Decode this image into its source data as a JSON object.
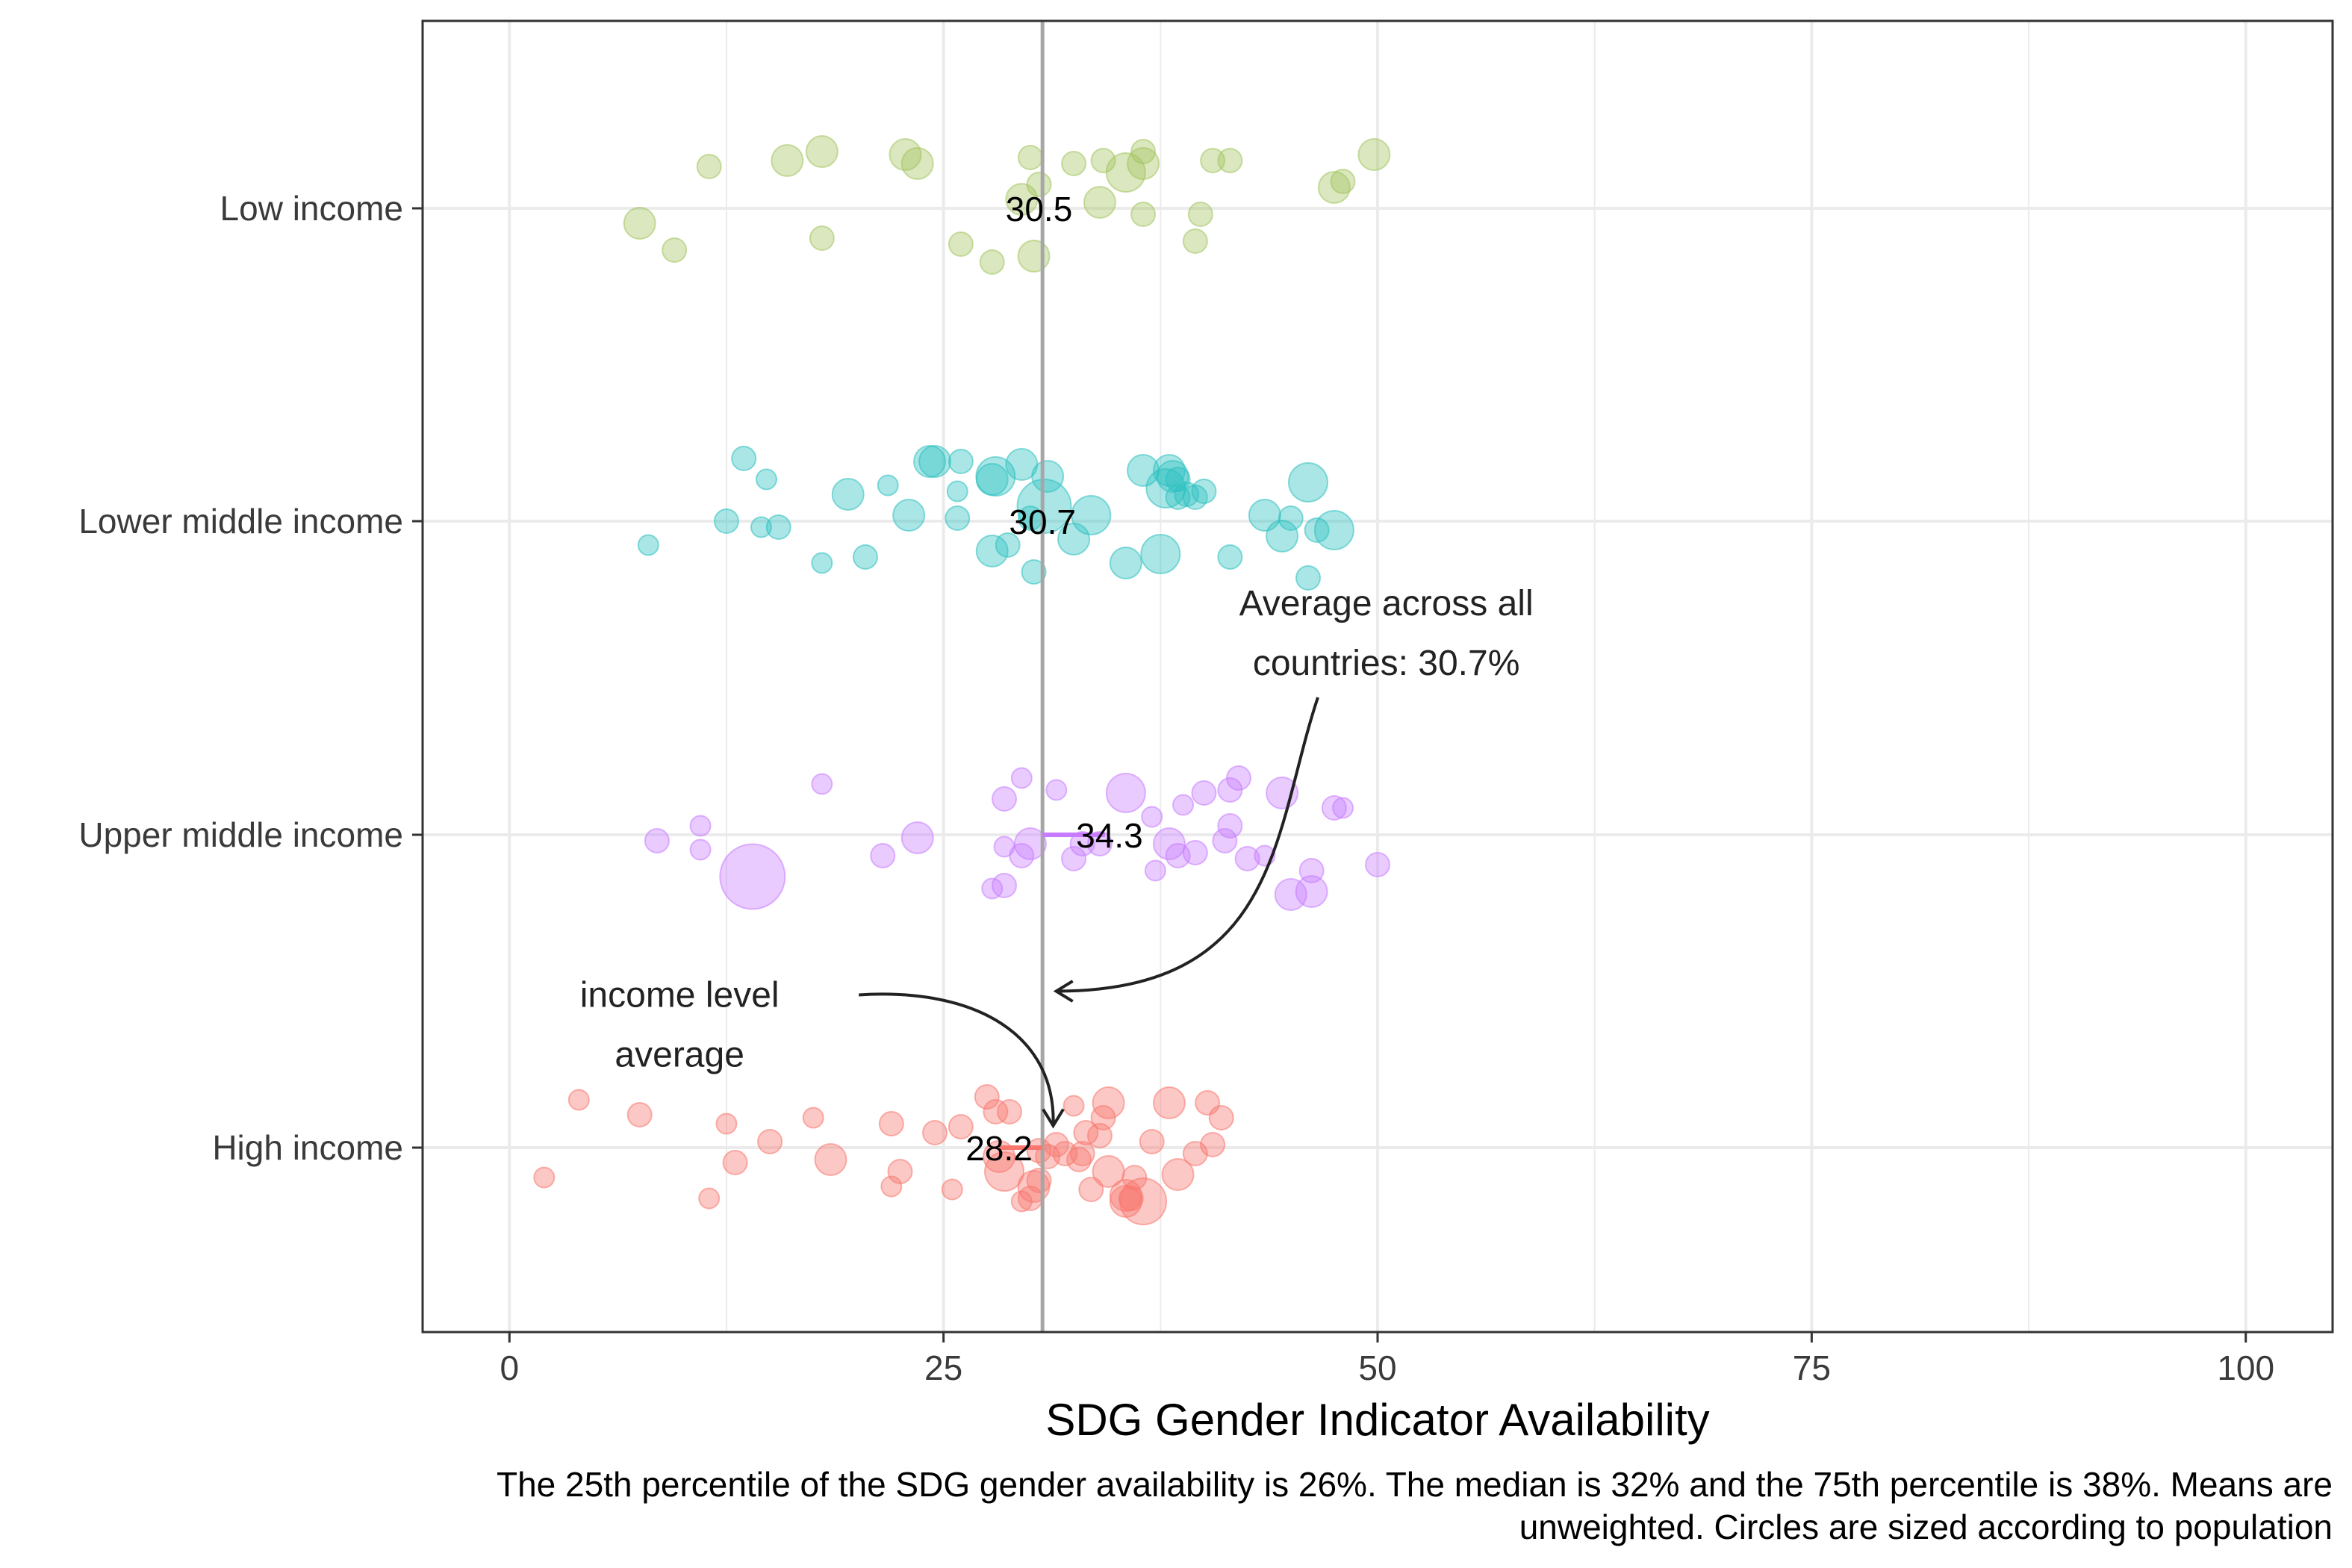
{
  "chart_data": {
    "type": "scatter",
    "title": "",
    "xlabel": "SDG Gender Indicator Availability",
    "ylabel": "",
    "xlim": [
      -5,
      105
    ],
    "x_ticks": [
      0,
      25,
      50,
      75,
      100
    ],
    "x_tick_labels": [
      "0",
      "25",
      "50",
      "75",
      "100"
    ],
    "grid": true,
    "legend": "none",
    "overall_average": 30.7,
    "categories": [
      "Low income",
      "Lower middle income",
      "Upper middle income",
      "High income"
    ],
    "series": [
      {
        "name": "Low income",
        "color": "#a3c45e",
        "mean": 30.5,
        "points": [
          [
            7.5,
            -0.5,
            3
          ],
          [
            9.5,
            -1.4,
            2
          ],
          [
            11.5,
            1.4,
            2
          ],
          [
            16,
            1.6,
            3
          ],
          [
            18,
            1.9,
            3
          ],
          [
            18,
            -1.0,
            2
          ],
          [
            22.8,
            1.8,
            3
          ],
          [
            23.5,
            1.5,
            3
          ],
          [
            26,
            -1.2,
            2
          ],
          [
            27.8,
            -1.8,
            2
          ],
          [
            30,
            1.7,
            2
          ],
          [
            30.2,
            -1.6,
            3
          ],
          [
            30.5,
            0.8,
            2
          ],
          [
            32.5,
            1.5,
            2
          ],
          [
            34,
            0.2,
            3
          ],
          [
            34.2,
            1.6,
            2
          ],
          [
            35.5,
            1.2,
            4
          ],
          [
            36.5,
            1.9,
            2
          ],
          [
            36.5,
            -0.2,
            2
          ],
          [
            36.5,
            1.5,
            3
          ],
          [
            39.5,
            -1.1,
            2
          ],
          [
            39.8,
            -0.2,
            2
          ],
          [
            40.5,
            1.6,
            2
          ],
          [
            41.5,
            1.6,
            2
          ],
          [
            47.5,
            0.7,
            3
          ],
          [
            48,
            0.9,
            2
          ],
          [
            49.8,
            1.8,
            3
          ],
          [
            29.5,
            0.3,
            3
          ]
        ]
      },
      {
        "name": "Lower middle income",
        "color": "#2ec0c0",
        "mean": 30.7,
        "points": [
          [
            8,
            -0.8,
            1.5
          ],
          [
            12.5,
            0,
            2
          ],
          [
            13.5,
            2.1,
            2
          ],
          [
            14.5,
            -0.2,
            1.5
          ],
          [
            14.8,
            1.4,
            1.5
          ],
          [
            15.5,
            -0.2,
            2
          ],
          [
            18,
            -1.4,
            1.5
          ],
          [
            19.5,
            0.9,
            3
          ],
          [
            20.5,
            -1.2,
            2
          ],
          [
            21.8,
            1.2,
            1.5
          ],
          [
            23,
            0.2,
            3
          ],
          [
            24.2,
            2,
            3
          ],
          [
            24.5,
            2,
            3
          ],
          [
            25.8,
            0.1,
            2
          ],
          [
            25.8,
            1.0,
            1.5
          ],
          [
            26,
            2,
            2
          ],
          [
            27.8,
            -1,
            3
          ],
          [
            27.8,
            1.4,
            3
          ],
          [
            28,
            1.5,
            4
          ],
          [
            28.7,
            -0.8,
            2
          ],
          [
            29.5,
            1.9,
            3
          ],
          [
            30,
            0.1,
            2
          ],
          [
            30.2,
            -1.7,
            2
          ],
          [
            30.8,
            0.5,
            6
          ],
          [
            31,
            1.5,
            3
          ],
          [
            32.5,
            -0.6,
            3
          ],
          [
            33.5,
            0.2,
            4
          ],
          [
            35.5,
            -1.4,
            3
          ],
          [
            36.5,
            1.7,
            3
          ],
          [
            37.5,
            -1.1,
            4
          ],
          [
            37.8,
            1.1,
            4
          ],
          [
            38,
            1.7,
            3
          ],
          [
            38.2,
            1.5,
            3
          ],
          [
            38.5,
            0.8,
            2
          ],
          [
            38.5,
            1.4,
            2
          ],
          [
            39,
            0.9,
            2
          ],
          [
            39.5,
            0.8,
            2
          ],
          [
            40,
            1.0,
            2
          ],
          [
            41.5,
            -1.2,
            2
          ],
          [
            43.5,
            0.2,
            3
          ],
          [
            44.5,
            -0.5,
            3
          ],
          [
            45,
            0.1,
            2
          ],
          [
            46,
            -1.9,
            2
          ],
          [
            46,
            1.3,
            4
          ],
          [
            46.5,
            -0.3,
            2
          ],
          [
            47.5,
            -0.3,
            4
          ]
        ]
      },
      {
        "name": "Upper middle income",
        "color": "#c77cff",
        "mean": 34.3,
        "points": [
          [
            8.5,
            -0.2,
            2
          ],
          [
            11,
            -0.5,
            1.5
          ],
          [
            11,
            0.3,
            1.5
          ],
          [
            14,
            -1.4,
            7.5
          ],
          [
            18,
            1.7,
            1.5
          ],
          [
            21.5,
            -0.7,
            2
          ],
          [
            23.5,
            -0.1,
            3
          ],
          [
            27.8,
            -1.8,
            1.5
          ],
          [
            28.5,
            1.2,
            2
          ],
          [
            28.5,
            -0.4,
            1.5
          ],
          [
            28.5,
            -1.7,
            2
          ],
          [
            29.5,
            -0.7,
            2
          ],
          [
            30,
            -0.3,
            3
          ],
          [
            29.5,
            1.9,
            1.5
          ],
          [
            31.5,
            1.5,
            1.5
          ],
          [
            32.5,
            -0.8,
            2
          ],
          [
            33,
            -0.3,
            2
          ],
          [
            35.5,
            1.4,
            4
          ],
          [
            37,
            0.6,
            1.5
          ],
          [
            37.2,
            -1.2,
            1.5
          ],
          [
            38,
            -0.3,
            3
          ],
          [
            38.5,
            -0.7,
            2
          ],
          [
            38.8,
            1.0,
            1.5
          ],
          [
            39.5,
            -0.6,
            2
          ],
          [
            40,
            1.4,
            2
          ],
          [
            41.2,
            -0.2,
            2
          ],
          [
            41.5,
            1.5,
            2
          ],
          [
            41.5,
            0.3,
            2
          ],
          [
            42,
            1.9,
            2
          ],
          [
            42.5,
            -0.8,
            2
          ],
          [
            43.5,
            -0.7,
            1.5
          ],
          [
            44.5,
            1.4,
            3
          ],
          [
            45,
            -2,
            3
          ],
          [
            46.2,
            -1.2,
            2
          ],
          [
            46.2,
            -1.9,
            3
          ],
          [
            47.5,
            0.9,
            2
          ],
          [
            48,
            0.9,
            1.5
          ],
          [
            50,
            -1,
            2
          ],
          [
            34,
            -0.3,
            2
          ]
        ]
      },
      {
        "name": "High income",
        "color": "#f8766d",
        "mean": 28.2,
        "points": [
          [
            2,
            -1,
            1.5
          ],
          [
            4,
            1.6,
            1.5
          ],
          [
            7.5,
            1.1,
            2
          ],
          [
            11.5,
            -1.7,
            1.5
          ],
          [
            12.5,
            0.8,
            1.5
          ],
          [
            13,
            -0.5,
            2
          ],
          [
            15,
            0.2,
            2
          ],
          [
            17.5,
            1.0,
            1.5
          ],
          [
            18.5,
            -0.4,
            3
          ],
          [
            22,
            0.8,
            2
          ],
          [
            22,
            -1.3,
            1.5
          ],
          [
            22.5,
            -0.8,
            2
          ],
          [
            24.5,
            0.5,
            2
          ],
          [
            25.5,
            -1.4,
            1.5
          ],
          [
            26,
            0.7,
            2
          ],
          [
            27.5,
            1.7,
            2
          ],
          [
            28,
            1.2,
            2
          ],
          [
            28.2,
            -0.3,
            3
          ],
          [
            28.5,
            -0.8,
            4
          ],
          [
            28.8,
            1.2,
            2
          ],
          [
            29.5,
            -1.8,
            1.5
          ],
          [
            30,
            -1.7,
            2
          ],
          [
            30.2,
            -1.3,
            3
          ],
          [
            30.5,
            -1.1,
            2
          ],
          [
            30.5,
            -0.1,
            2
          ],
          [
            31.5,
            0.1,
            2
          ],
          [
            32,
            -0.2,
            2
          ],
          [
            32.5,
            1.4,
            1.5
          ],
          [
            33,
            -0.2,
            2
          ],
          [
            33.2,
            0.5,
            2
          ],
          [
            34,
            0.4,
            2
          ],
          [
            34.2,
            1.0,
            2
          ],
          [
            34.5,
            1.5,
            3
          ],
          [
            34.5,
            -0.8,
            3
          ],
          [
            35.5,
            -1.6,
            3
          ],
          [
            35.5,
            -1.8,
            3
          ],
          [
            35.8,
            -1.7,
            2
          ],
          [
            36.5,
            -1.8,
            5
          ],
          [
            37,
            0.2,
            2
          ],
          [
            38,
            1.5,
            3
          ],
          [
            38.5,
            -0.9,
            3
          ],
          [
            39.5,
            -0.2,
            2
          ],
          [
            40.2,
            1.5,
            2
          ],
          [
            40.5,
            0.1,
            2
          ],
          [
            41,
            1.0,
            2
          ],
          [
            33.5,
            -1.4,
            2
          ],
          [
            36,
            -1.0,
            2
          ],
          [
            31,
            -0.3,
            2
          ],
          [
            32.8,
            -0.4,
            2
          ]
        ]
      }
    ],
    "annotations": [
      {
        "text_lines": [
          "Average across all",
          "countries: 30.7%"
        ],
        "x": 50.5,
        "row": 1.3,
        "arrow_to": [
          30.8,
          2.5
        ]
      },
      {
        "text_lines": [
          "income level",
          "average"
        ],
        "x": 9.8,
        "row": 2.55,
        "arrow_to": [
          30.8,
          2.93
        ]
      }
    ],
    "caption_lines": [
      "The 25th percentile of the SDG gender availability is 26%. The median is 32% and the 75th percentile is 38%. Means are",
      "unweighted. Circles are sized according to population"
    ]
  }
}
